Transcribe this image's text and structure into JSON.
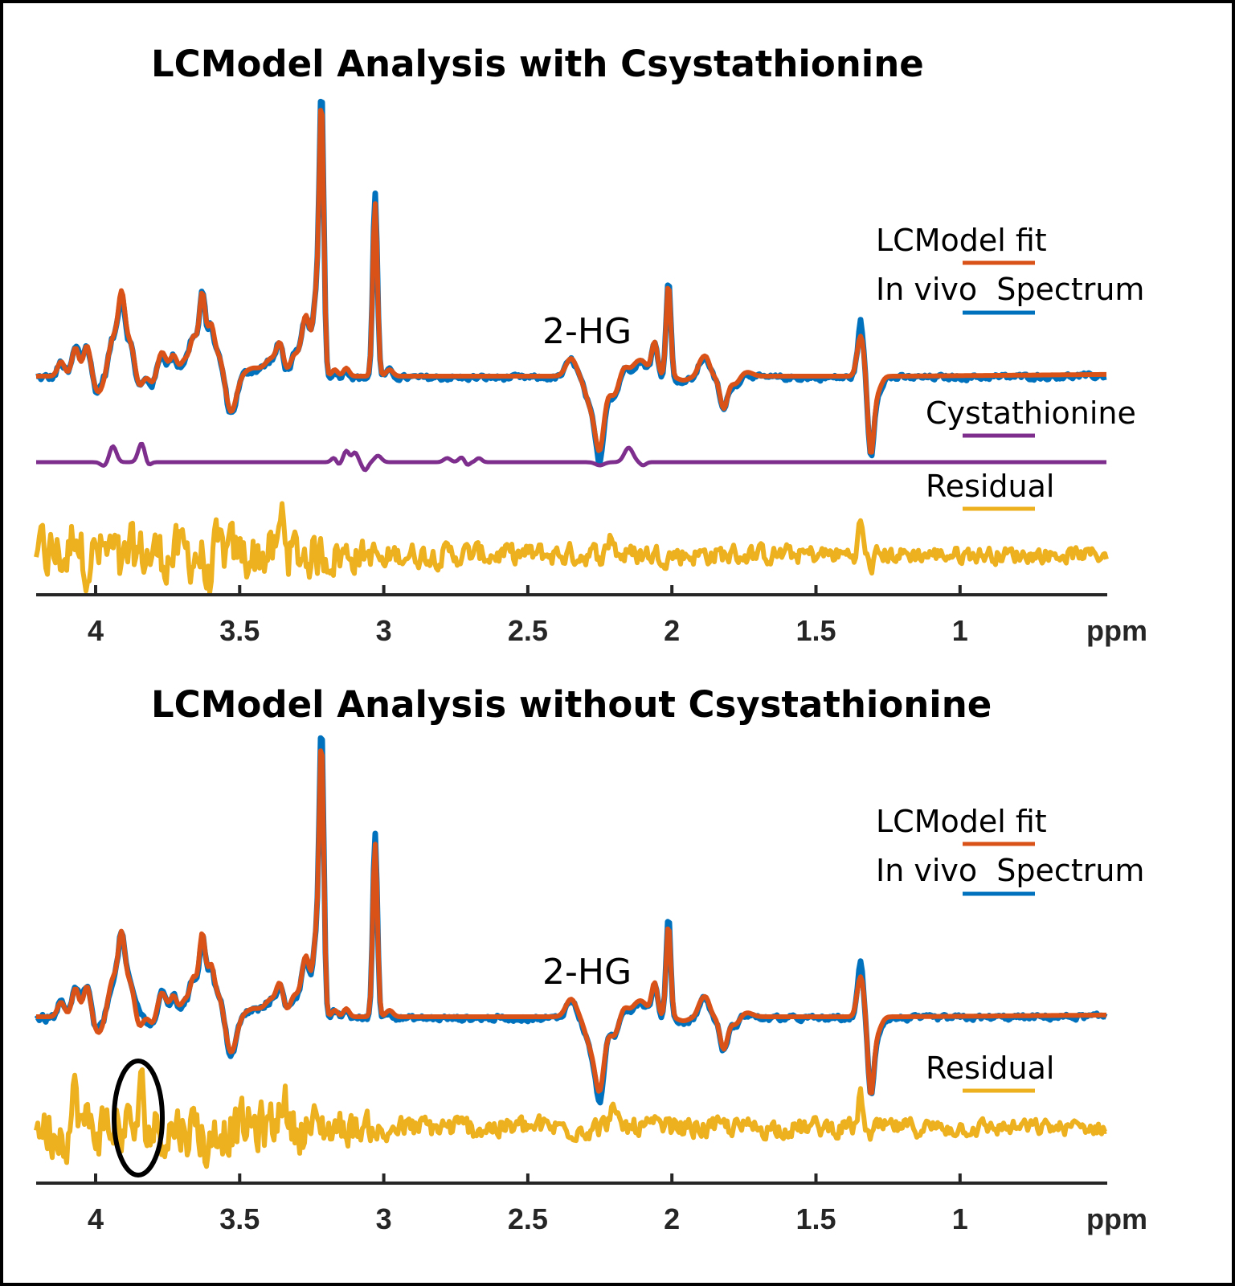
{
  "chart_data": {
    "type": "line",
    "x_axis": {
      "label": "ppm",
      "range": [
        4.206,
        0.49
      ],
      "reversed": true,
      "ticks": [
        4,
        3.5,
        3,
        2.5,
        2,
        1.5,
        1
      ],
      "tick_labels": [
        "4",
        "3.5",
        "3",
        "2.5",
        "2",
        "1.5",
        "1"
      ]
    },
    "colors": {
      "fit": "#d95319",
      "in_vivo": "#0072bd",
      "cystathionine": "#7e2f8e",
      "residual": "#edb120"
    },
    "fit_peaks_ppm_amp_width": [
      [
        4.12,
        18,
        0.012
      ],
      [
        4.07,
        35,
        0.012
      ],
      [
        4.03,
        38,
        0.012
      ],
      [
        3.99,
        -20,
        0.015
      ],
      [
        3.94,
        45,
        0.015
      ],
      [
        3.91,
        95,
        0.012
      ],
      [
        3.88,
        40,
        0.015
      ],
      [
        3.85,
        -15,
        0.012
      ],
      [
        3.8,
        -10,
        0.012
      ],
      [
        3.77,
        30,
        0.015
      ],
      [
        3.73,
        25,
        0.012
      ],
      [
        3.69,
        20,
        0.015
      ],
      [
        3.66,
        45,
        0.012
      ],
      [
        3.63,
        100,
        0.011
      ],
      [
        3.6,
        60,
        0.012
      ],
      [
        3.57,
        25,
        0.015
      ],
      [
        3.53,
        -45,
        0.018
      ],
      [
        3.45,
        10,
        0.03
      ],
      [
        3.39,
        20,
        0.02
      ],
      [
        3.36,
        35,
        0.012
      ],
      [
        3.31,
        25,
        0.015
      ],
      [
        3.27,
        75,
        0.015
      ],
      [
        3.235,
        90,
        0.01
      ],
      [
        3.216,
        330,
        0.008
      ],
      [
        3.17,
        8,
        0.01
      ],
      [
        3.13,
        10,
        0.01
      ],
      [
        3.03,
        215,
        0.008
      ],
      [
        2.98,
        8,
        0.012
      ],
      [
        2.35,
        22,
        0.018
      ],
      [
        2.28,
        -35,
        0.02
      ],
      [
        2.25,
        -80,
        0.015
      ],
      [
        2.2,
        -25,
        0.02
      ],
      [
        2.17,
        15,
        0.015
      ],
      [
        2.11,
        20,
        0.025
      ],
      [
        2.06,
        40,
        0.01
      ],
      [
        2.012,
        115,
        0.008
      ],
      [
        1.96,
        -5,
        0.02
      ],
      [
        1.9,
        15,
        0.012
      ],
      [
        1.88,
        20,
        0.012
      ],
      [
        1.82,
        -40,
        0.013
      ],
      [
        1.78,
        -10,
        0.015
      ],
      [
        1.74,
        5,
        0.02
      ],
      [
        1.345,
        50,
        0.012
      ],
      [
        1.31,
        -90,
        0.01
      ],
      [
        1.29,
        -20,
        0.015
      ]
    ],
    "panels": [
      {
        "title": "LCModel Analysis with Csystathionine",
        "annotation": "2-HG",
        "legend": [
          "LCModel fit",
          "In vivo  Spectrum",
          "Cystathionine",
          "Residual"
        ],
        "in_vivo_extra_peaks": [
          [
            4.05,
            10,
            0.01
          ],
          [
            3.98,
            8,
            0.008
          ],
          [
            3.67,
            5,
            0.01
          ],
          [
            3.215,
            18,
            0.006
          ],
          [
            3.03,
            15,
            0.006
          ],
          [
            2.25,
            -12,
            0.01
          ],
          [
            2.012,
            10,
            0.006
          ],
          [
            1.345,
            20,
            0.006
          ]
        ],
        "cystathionine_peaks": [
          [
            3.97,
            -5,
            0.012
          ],
          [
            3.94,
            20,
            0.012
          ],
          [
            3.84,
            24,
            0.012
          ],
          [
            3.82,
            -6,
            0.01
          ],
          [
            3.16,
            -6,
            0.01
          ],
          [
            3.17,
            8,
            0.01
          ],
          [
            3.13,
            14,
            0.01
          ],
          [
            3.1,
            12,
            0.01
          ],
          [
            3.065,
            -10,
            0.01
          ],
          [
            3.02,
            8,
            0.012
          ],
          [
            2.78,
            5,
            0.012
          ],
          [
            2.73,
            6,
            0.01
          ],
          [
            2.71,
            -4,
            0.008
          ],
          [
            2.67,
            5,
            0.01
          ],
          [
            2.25,
            -4,
            0.015
          ],
          [
            2.15,
            18,
            0.015
          ],
          [
            2.1,
            -4,
            0.01
          ]
        ],
        "residual_envelope_ppm_amp": [
          [
            4.2,
            40
          ],
          [
            3.3,
            35
          ],
          [
            3.0,
            16
          ],
          [
            2.0,
            14
          ],
          [
            0.5,
            10
          ]
        ],
        "residual_peaks": [
          [
            4.07,
            40,
            0.01
          ],
          [
            3.91,
            -30,
            0.01
          ],
          [
            3.61,
            -35,
            0.01
          ],
          [
            3.35,
            50,
            0.01
          ],
          [
            3.0,
            -15,
            0.01
          ],
          [
            2.21,
            25,
            0.01
          ],
          [
            1.345,
            40,
            0.008
          ],
          [
            1.31,
            -15,
            0.01
          ]
        ]
      },
      {
        "title": "LCModel Analysis without Csystathionine",
        "annotation": "2-HG",
        "legend": [
          "LCModel fit",
          "In vivo  Spectrum",
          "Residual"
        ],
        "in_vivo_extra_peaks": [
          [
            4.05,
            10,
            0.01
          ],
          [
            3.98,
            8,
            0.008
          ],
          [
            3.85,
            22,
            0.01
          ],
          [
            3.215,
            18,
            0.006
          ],
          [
            3.03,
            15,
            0.006
          ],
          [
            2.25,
            -12,
            0.01
          ],
          [
            2.012,
            10,
            0.006
          ],
          [
            1.345,
            20,
            0.006
          ]
        ],
        "residual_envelope_ppm_amp": [
          [
            4.2,
            40
          ],
          [
            3.3,
            35
          ],
          [
            3.0,
            16
          ],
          [
            2.0,
            14
          ],
          [
            0.5,
            10
          ]
        ],
        "residual_peaks": [
          [
            4.07,
            40,
            0.01
          ],
          [
            3.84,
            40,
            0.008
          ],
          [
            3.61,
            -35,
            0.01
          ],
          [
            3.35,
            50,
            0.01
          ],
          [
            3.0,
            -15,
            0.01
          ],
          [
            2.21,
            25,
            0.01
          ],
          [
            1.345,
            40,
            0.008
          ],
          [
            1.31,
            -15,
            0.01
          ]
        ]
      }
    ]
  }
}
